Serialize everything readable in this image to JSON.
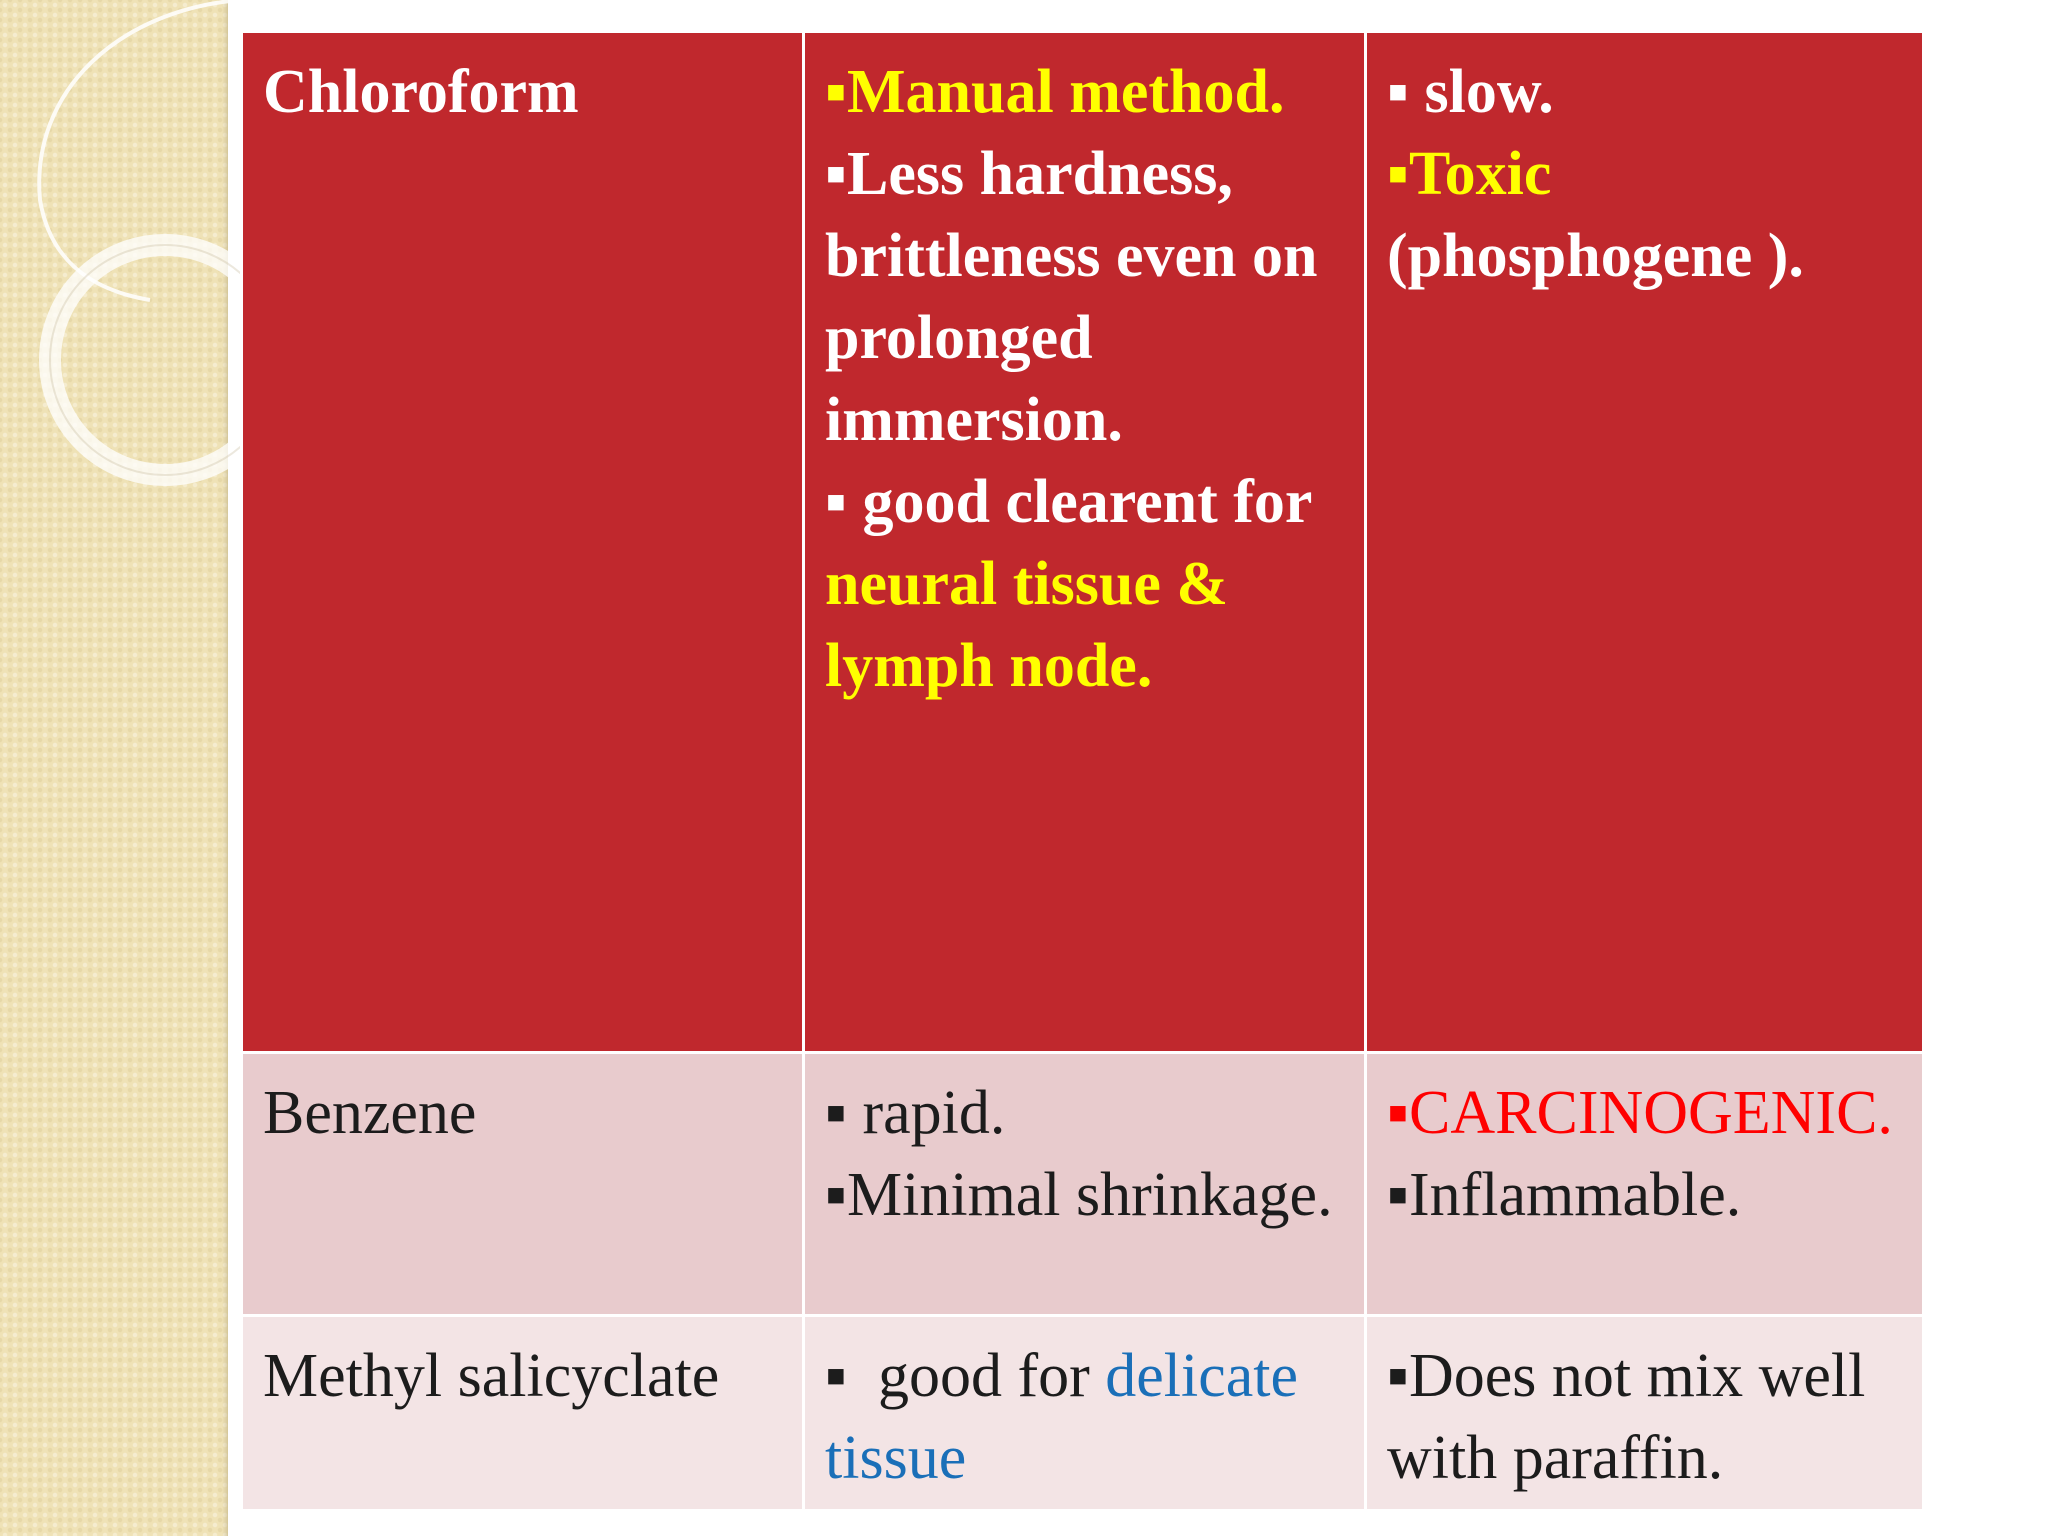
{
  "rows": [
    {
      "name": "Chloroform",
      "advantages": [
        {
          "bullet": "▪",
          "text": "Manual method."
        },
        {
          "bullet": "▪",
          "text": "Less hardness, brittleness even on prolonged immersion."
        },
        {
          "bullet": "▪",
          "pre": " good clearent for ",
          "highlight": "neural tissue & lymph node."
        }
      ],
      "disadvantages": [
        {
          "bullet": "▪",
          "text": " slow."
        },
        {
          "bullet": "▪",
          "highlight": "Toxic",
          "text": "(phosphogene )."
        }
      ]
    },
    {
      "name": "Benzene",
      "advantages": [
        {
          "bullet": "▪",
          "text": " rapid."
        },
        {
          "bullet": "▪",
          "text": "Minimal shrinkage."
        }
      ],
      "disadvantages": [
        {
          "bullet": "▪",
          "highlight": "CARCINOGENIC."
        },
        {
          "bullet": "▪",
          "text": "Inflammable."
        }
      ]
    },
    {
      "name": "Methyl salicyclate",
      "advantages": [
        {
          "bullet": "▪",
          "pre": "  good for ",
          "highlight": "delicate tissue"
        }
      ],
      "disadvantages": [
        {
          "bullet": "▪",
          "text": "Does not mix well with paraffin."
        }
      ]
    }
  ],
  "colors": {
    "header_row_bg": "#c0282d",
    "row2_bg": "#e8cbcd",
    "row3_bg": "#f3e4e5",
    "highlight_yellow": "#ffff00",
    "highlight_red": "#ff0000",
    "highlight_blue": "#1a6fb8",
    "side_band": "#efe2b6"
  }
}
